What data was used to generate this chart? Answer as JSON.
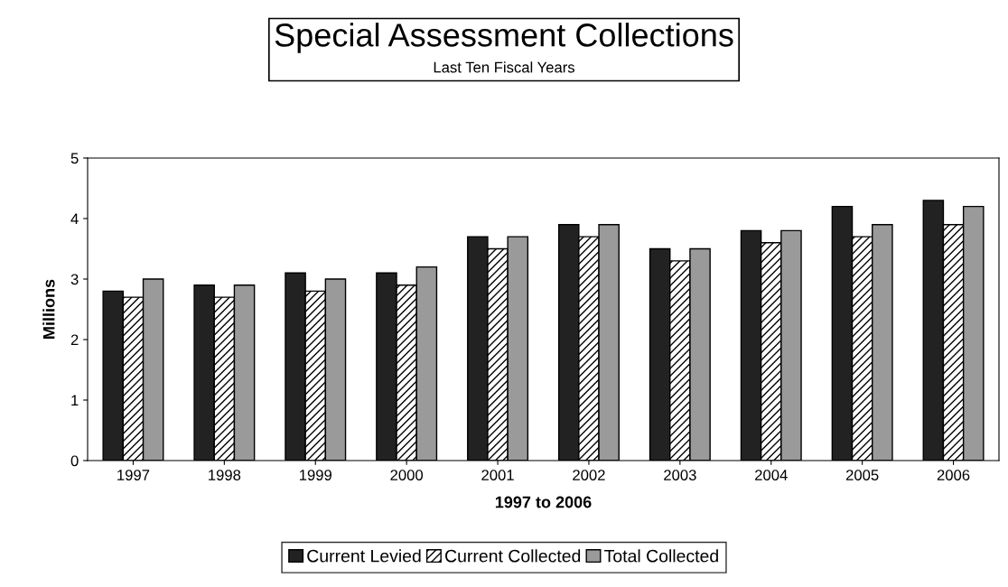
{
  "chart_data": {
    "type": "bar",
    "title": "Special Assessment Collections",
    "subtitle": "Last Ten Fiscal Years",
    "xlabel": "1997 to 2006",
    "ylabel": "Millions",
    "categories": [
      "1997",
      "1998",
      "1999",
      "2000",
      "2001",
      "2002",
      "2003",
      "2004",
      "2005",
      "2006"
    ],
    "series": [
      {
        "name": "Current Levied",
        "color": "#222222",
        "values": [
          2.8,
          2.9,
          3.1,
          3.1,
          3.7,
          3.9,
          3.5,
          3.8,
          4.2,
          4.3
        ]
      },
      {
        "name": "Current Collected",
        "color": "#000000",
        "values": [
          2.7,
          2.7,
          2.8,
          2.9,
          3.5,
          3.7,
          3.3,
          3.6,
          3.7,
          3.9
        ]
      },
      {
        "name": "Total Collected",
        "color": "#9a9a9a",
        "values": [
          3.0,
          2.9,
          3.0,
          3.2,
          3.7,
          3.9,
          3.5,
          3.8,
          3.9,
          4.2
        ]
      }
    ],
    "ylim": [
      0,
      5
    ],
    "yticks": [
      0,
      1,
      2,
      3,
      4,
      5
    ],
    "grid": false,
    "legend": "bottom"
  }
}
